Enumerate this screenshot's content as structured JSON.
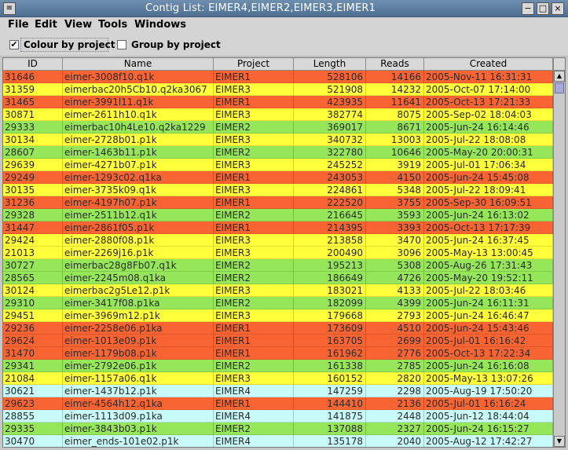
{
  "window": {
    "title": "Contig List: EIMER4,EIMER2,EIMER3,EIMER1",
    "minimize_glyph": "−",
    "maximize_glyph": "□",
    "close_glyph": "×"
  },
  "menubar": [
    "File",
    "Edit",
    "View",
    "Tools",
    "Windows"
  ],
  "options": {
    "colour_by_project": {
      "label": "Colour by project",
      "checked": true
    },
    "group_by_project": {
      "label": "Group by project",
      "checked": false
    }
  },
  "table": {
    "columns": [
      "ID",
      "Name",
      "Project",
      "Length",
      "Reads",
      "Created"
    ],
    "project_colors": {
      "EIMER1": "#fa6432",
      "EIMER2": "#96e65a",
      "EIMER3": "#ffff3c",
      "EIMER4": "#c8fafa"
    },
    "rows": [
      [
        "31646",
        "eimer-3008f10.q1k",
        "EIMER1",
        "528106",
        "14166",
        "2005-Nov-11 16:31:31"
      ],
      [
        "31359",
        "eimerbac20h5Cb10.q2ka3067",
        "EIMER3",
        "521908",
        "14232",
        "2005-Oct-07 17:14:00"
      ],
      [
        "31465",
        "eimer-3991l11.q1k",
        "EIMER1",
        "423935",
        "11641",
        "2005-Oct-13 17:21:33"
      ],
      [
        "30871",
        "eimer-2611h10.q1k",
        "EIMER3",
        "382774",
        "8075",
        "2005-Sep-02 18:04:03"
      ],
      [
        "29333",
        "eimerbac10h4Le10.q2ka1229",
        "EIMER2",
        "369017",
        "8671",
        "2005-Jun-24 16:14:46"
      ],
      [
        "30134",
        "eimer-2728b01.p1k",
        "EIMER3",
        "340732",
        "13003",
        "2005-Jul-22 18:08:08"
      ],
      [
        "28607",
        "eimer-1463b11.p1k",
        "EIMER2",
        "322780",
        "10646",
        "2005-May-20 20:00:31"
      ],
      [
        "29639",
        "eimer-4271b07.p1k",
        "EIMER3",
        "245252",
        "3919",
        "2005-Jul-01 17:06:34"
      ],
      [
        "29249",
        "eimer-1293c02.q1ka",
        "EIMER1",
        "243053",
        "4150",
        "2005-Jun-24 15:45:08"
      ],
      [
        "30135",
        "eimer-3735k09.q1k",
        "EIMER3",
        "224861",
        "5348",
        "2005-Jul-22 18:09:41"
      ],
      [
        "31236",
        "eimer-4197h07.p1k",
        "EIMER1",
        "222520",
        "3755",
        "2005-Sep-30 16:09:51"
      ],
      [
        "29328",
        "eimer-2511b12.q1k",
        "EIMER2",
        "216645",
        "3593",
        "2005-Jun-24 16:13:02"
      ],
      [
        "31447",
        "eimer-2861f05.p1k",
        "EIMER1",
        "214395",
        "3393",
        "2005-Oct-13 17:17:39"
      ],
      [
        "29424",
        "eimer-2880f08.p1k",
        "EIMER3",
        "213858",
        "3470",
        "2005-Jun-24 16:37:45"
      ],
      [
        "21013",
        "eimer-2269j16.p1k",
        "EIMER3",
        "200490",
        "3096",
        "2005-May-13 13:00:45"
      ],
      [
        "30727",
        "eimerbac28g8Fb07.q1k",
        "EIMER2",
        "195213",
        "5308",
        "2005-Aug-26 17:31:43"
      ],
      [
        "28565",
        "eimer-2245m08.q1ka",
        "EIMER2",
        "186649",
        "4726",
        "2005-May-20 19:52:11"
      ],
      [
        "30124",
        "eimerbac2g5Le12.p1k",
        "EIMER3",
        "183021",
        "4133",
        "2005-Jul-22 18:03:46"
      ],
      [
        "29310",
        "eimer-3417f08.p1ka",
        "EIMER2",
        "182099",
        "4399",
        "2005-Jun-24 16:11:31"
      ],
      [
        "29451",
        "eimer-3969m12.p1k",
        "EIMER3",
        "179668",
        "2793",
        "2005-Jun-24 16:46:47"
      ],
      [
        "29236",
        "eimer-2258e06.p1ka",
        "EIMER1",
        "173609",
        "4510",
        "2005-Jun-24 15:43:46"
      ],
      [
        "29624",
        "eimer-1013e09.p1k",
        "EIMER1",
        "163705",
        "2699",
        "2005-Jul-01 16:16:42"
      ],
      [
        "31470",
        "eimer-1179b08.p1k",
        "EIMER1",
        "161962",
        "2776",
        "2005-Oct-13 17:22:34"
      ],
      [
        "29341",
        "eimer-2792e06.p1k",
        "EIMER2",
        "161338",
        "2785",
        "2005-Jun-24 16:16:08"
      ],
      [
        "21084",
        "eimer-1157a06.q1k",
        "EIMER3",
        "160152",
        "2820",
        "2005-May-13 13:07:26"
      ],
      [
        "30621",
        "eimer-1437b12.p1k",
        "EIMER4",
        "147259",
        "2298",
        "2005-Aug-19 17:50:20"
      ],
      [
        "29623",
        "eimer-4564h12.q1ka",
        "EIMER1",
        "144410",
        "2136",
        "2005-Jul-01 16:16:24"
      ],
      [
        "28855",
        "eimer-1113d09.p1ka",
        "EIMER4",
        "141875",
        "2448",
        "2005-Jun-12 18:44:04"
      ],
      [
        "29335",
        "eimer-3843b03.p1k",
        "EIMER2",
        "137088",
        "2327",
        "2005-Jun-24 16:15:27"
      ],
      [
        "30470",
        "eimer_ends-101e02.p1k",
        "EIMER4",
        "135178",
        "2040",
        "2005-Aug-12 17:42:27"
      ]
    ]
  }
}
